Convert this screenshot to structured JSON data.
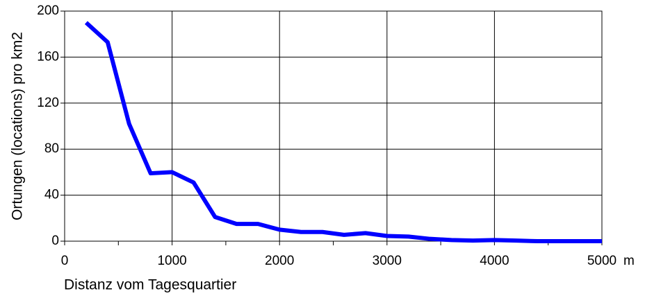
{
  "chart_data": {
    "type": "line",
    "xlabel": "Distanz vom Tagesquartier",
    "xunit": "m",
    "ylabel": "Ortungen (locations) pro km2",
    "x": [
      200,
      400,
      600,
      800,
      1000,
      1200,
      1400,
      1600,
      1800,
      2000,
      2200,
      2400,
      2600,
      2800,
      3000,
      3200,
      3400,
      3600,
      3800,
      4000,
      4200,
      4400,
      4600,
      4800,
      5000
    ],
    "series": [
      {
        "color": "#0000ff",
        "values": [
          190,
          173,
          102,
          59,
          60,
          51,
          21,
          15,
          15,
          10,
          8,
          8,
          5.5,
          7,
          4.5,
          4,
          2,
          1,
          0.5,
          1,
          0.5,
          0,
          0,
          0,
          0
        ]
      }
    ],
    "xlim": [
      0,
      5000
    ],
    "xticks": [
      0,
      1000,
      2000,
      3000,
      4000,
      5000
    ],
    "xminorticks": [
      500,
      1500,
      2500,
      3500,
      4500
    ],
    "ylim": [
      0,
      200
    ],
    "yticks": [
      0,
      40,
      80,
      120,
      160,
      200
    ],
    "grid": true
  }
}
